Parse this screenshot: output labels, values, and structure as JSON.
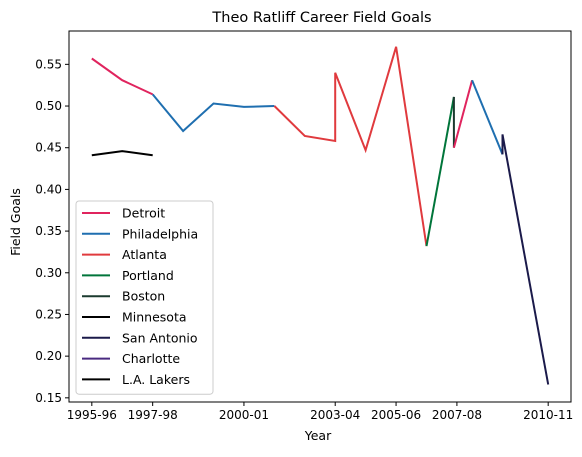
{
  "chart_data": {
    "type": "line",
    "title": "Theo Ratliff Career Field Goals",
    "xlabel": "Year",
    "ylabel": "Field Goals",
    "x_tick_labels": [
      "1995-96",
      "1997-98",
      "2000-01",
      "2003-04",
      "2005-06",
      "2007-08",
      "2010-11"
    ],
    "x_ticks": [
      0,
      2,
      5,
      8,
      10,
      12,
      15
    ],
    "y_ticks": [
      0.15,
      0.2,
      0.25,
      0.3,
      0.35,
      0.4,
      0.45,
      0.5,
      0.55
    ],
    "y_tick_labels": [
      "0.15",
      "0.20",
      "0.25",
      "0.30",
      "0.35",
      "0.40",
      "0.45",
      "0.50",
      "0.55"
    ],
    "xlim": [
      -0.75,
      15.75
    ],
    "ylim": [
      0.145,
      0.59
    ],
    "grid": false,
    "legend_position": "lower left",
    "series": [
      {
        "name": "Detroit",
        "color": "#e0245e",
        "points": [
          [
            0,
            0.557
          ],
          [
            1,
            0.531
          ],
          [
            2,
            0.514
          ]
        ]
      },
      {
        "name": "Philadelphia",
        "color": "#1f6fb0",
        "points": [
          [
            2,
            0.514
          ],
          [
            3,
            0.47
          ],
          [
            4,
            0.503
          ],
          [
            5,
            0.499
          ],
          [
            6,
            0.5
          ]
        ]
      },
      {
        "name": "Atlanta",
        "color": "#e03a3e",
        "points": [
          [
            6,
            0.5
          ],
          [
            7,
            0.464
          ],
          [
            8,
            0.458
          ],
          [
            8,
            0.54
          ],
          [
            9,
            0.447
          ],
          [
            10,
            0.571
          ],
          [
            11,
            0.332
          ]
        ]
      },
      {
        "name": "Portland",
        "color": "#00753a",
        "points": [
          [
            11,
            0.332
          ],
          [
            11.9,
            0.511
          ]
        ]
      },
      {
        "name": "Boston",
        "color": "#1b3a2f",
        "points": [
          [
            11.9,
            0.511
          ],
          [
            11.9,
            0.45
          ]
        ]
      },
      {
        "name": "Detroit",
        "color": "#e0245e",
        "points": [
          [
            11.9,
            0.45
          ],
          [
            12.5,
            0.531
          ]
        ]
      },
      {
        "name": "Philadelphia",
        "color": "#1f6fb0",
        "points": [
          [
            12.5,
            0.531
          ],
          [
            13.5,
            0.442
          ]
        ]
      },
      {
        "name": "San Antonio",
        "color": "#1b1a4a",
        "points": [
          [
            13.5,
            0.442
          ],
          [
            13.5,
            0.466
          ],
          [
            15,
            0.166
          ]
        ]
      },
      {
        "name": "Minnesota",
        "color": "#000000",
        "points": [
          [
            0,
            0.441
          ],
          [
            1,
            0.446
          ],
          [
            2,
            0.441
          ]
        ]
      }
    ],
    "legend": [
      {
        "name": "Detroit",
        "color": "#e0245e"
      },
      {
        "name": "Philadelphia",
        "color": "#1f6fb0"
      },
      {
        "name": "Atlanta",
        "color": "#e03a3e"
      },
      {
        "name": "Portland",
        "color": "#00753a"
      },
      {
        "name": "Boston",
        "color": "#1b3a2f"
      },
      {
        "name": "Minnesota",
        "color": "#000000"
      },
      {
        "name": "San Antonio",
        "color": "#1b1a4a"
      },
      {
        "name": "Charlotte",
        "color": "#4a2a80"
      },
      {
        "name": "L.A. Lakers",
        "color": "#000000"
      }
    ]
  }
}
